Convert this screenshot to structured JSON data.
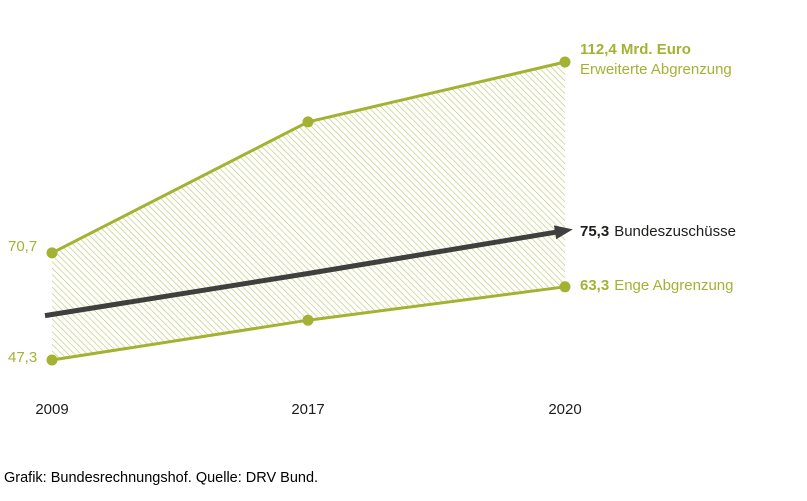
{
  "caption": "Grafik: Bundesrechnungshof. Quelle: DRV Bund.",
  "colors": {
    "green": "#a4b233",
    "dark": "#3f3f3d",
    "text": "#1d1d1b"
  },
  "chart_data": {
    "type": "area",
    "title": "",
    "xlabel": "",
    "ylabel": "Mrd. Euro",
    "categories": [
      "2009",
      "2017",
      "2020"
    ],
    "ylim": [
      40,
      120
    ],
    "grid": false,
    "legend_position": "inline-right",
    "area_fill": "diagonal-hatch",
    "series": [
      {
        "name": "Erweiterte Abgrenzung",
        "role": "upper",
        "color": "#a4b233",
        "values": [
          70.7,
          99.3,
          112.4
        ]
      },
      {
        "name": "Enge Abgrenzung",
        "role": "lower",
        "color": "#a4b233",
        "values": [
          47.3,
          56.0,
          63.3
        ]
      },
      {
        "name": "Bundeszuschüsse",
        "role": "arrow",
        "color": "#3f3f3d",
        "values": [
          57.0,
          66.2,
          75.3
        ]
      }
    ],
    "labels": {
      "start_upper": "70,7",
      "start_lower": "47,3",
      "end_upper_value": "112,4 Mrd. Euro",
      "end_upper_name": "Erweiterte Abgrenzung",
      "arrow_value": "75,3",
      "arrow_name": "Bundeszuschüsse",
      "end_lower_value": "63,3",
      "end_lower_name": "Enge Abgrenzung"
    }
  }
}
